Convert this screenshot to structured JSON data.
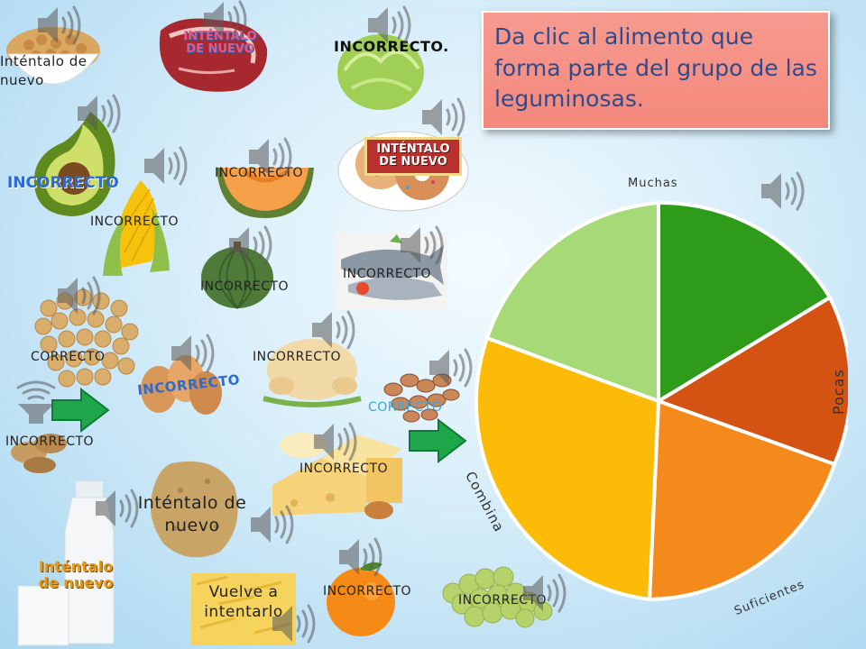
{
  "instruction": "Da clic al alimento que forma parte del grupo de las leguminosas.",
  "pie": {
    "label_muchas": "Muchas",
    "label_pocas": "Pocas",
    "label_suficientes": "Suficientes",
    "label_combina": "Combina",
    "colors": [
      "#2e9c1a",
      "#d55312",
      "#f58a1c",
      "#fbbb06",
      "#a5da76"
    ]
  },
  "labels": {
    "garbanzo_bowl": "Inténtalo de nuevo",
    "steak": "INTÉNTALO DE NUEVO",
    "lettuce": "INCORRECTO.",
    "avocado": "INCORRECTO",
    "corn": "INCORRECTO",
    "melon": "INCORRECTO",
    "donuts": "INTÉNTALO DE NUEVO",
    "squash": "INCORRECTO",
    "fish": "INCORRECTO",
    "chickpeas": "CORRECTO",
    "chicken": "INCORRECTO",
    "eggs": "INCORRECTO",
    "beans": "CORRECTO",
    "peanuts": "INCORRECTO",
    "cheese": "INCORRECTO",
    "potato": "Inténtalo de nuevo",
    "milk": "Inténtalo de nuevo",
    "pasta": "Vuelve a intentarlo",
    "orange": "INCORRECTO",
    "grapes": "INCORRECTO"
  },
  "icons": {
    "speaker": "speaker-icon",
    "arrow": "green-arrow-icon"
  }
}
